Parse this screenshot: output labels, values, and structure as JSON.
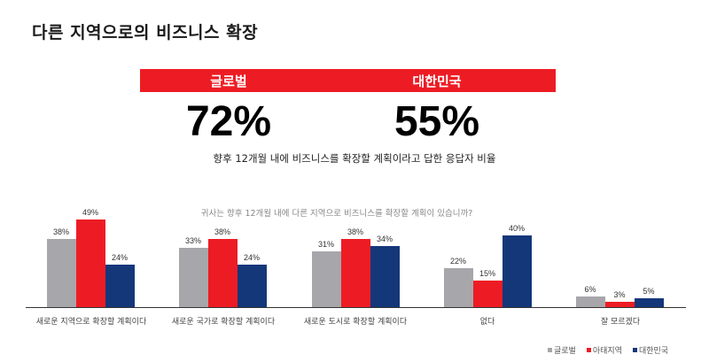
{
  "title": "다른 지역으로의 비즈니스 확장",
  "banner": {
    "left_label": "글로벌",
    "right_label": "대한민국",
    "color": "#ed1c24"
  },
  "headline": {
    "global_value": "72%",
    "korea_value": "55%",
    "subtitle": "향후 12개월 내에 비즈니스를 확장할 계획이라고 답한 응답자 비율"
  },
  "colors": {
    "global": "#a7a6ab",
    "apac": "#ed1c24",
    "korea": "#14377a"
  },
  "chart_data": {
    "type": "bar",
    "title": "귀사는 향후 12개월 내에 다른 지역으로 비즈니스를 확장할 계획이 있습니까?",
    "xlabel": "",
    "ylabel": "",
    "ylim": [
      0,
      50
    ],
    "grid": false,
    "legend_position": "bottom-right",
    "categories": [
      "새로운 지역으로 확장할 계획이다",
      "새로운 국가로 확장할 계획이다",
      "새로운 도시로 확장할 계획이다",
      "없다",
      "잘 모르겠다"
    ],
    "series": [
      {
        "name": "글로벌",
        "color": "#a7a6ab",
        "values": [
          38,
          33,
          31,
          22,
          6
        ]
      },
      {
        "name": "아태지역",
        "color": "#ed1c24",
        "values": [
          49,
          38,
          38,
          15,
          3
        ]
      },
      {
        "name": "대한민국",
        "color": "#14377a",
        "values": [
          24,
          24,
          34,
          40,
          5
        ]
      }
    ]
  },
  "legend": {
    "items": [
      {
        "label": "글로벌",
        "color": "#a7a6ab"
      },
      {
        "label": "아태지역",
        "color": "#ed1c24"
      },
      {
        "label": "대한민국",
        "color": "#14377a"
      }
    ]
  }
}
